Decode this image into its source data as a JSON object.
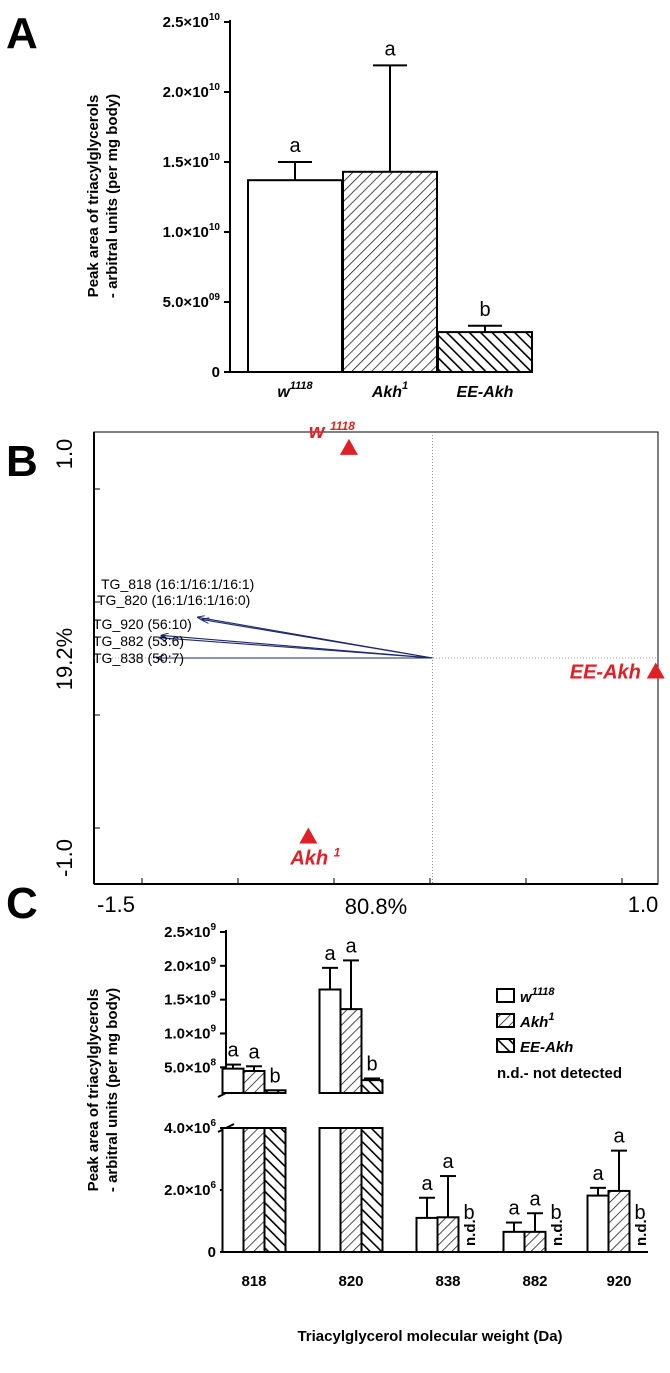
{
  "panels": {
    "a_letter": "A",
    "b_letter": "B",
    "c_letter": "C"
  },
  "colors": {
    "score_points": "#e02027",
    "loading_arrows": "#1f2a6b",
    "bars": "#000000"
  },
  "chart_data": [
    {
      "panel": "A",
      "type": "bar",
      "categories": [
        "w1118",
        "Akh1",
        "EE-Akh"
      ],
      "category_labels": [
        {
          "base": "w",
          "sup": "1118"
        },
        {
          "base": "Akh",
          "sup": "1"
        },
        {
          "base": "EE-Akh",
          "sup": ""
        }
      ],
      "values": [
        13700000000.0,
        14300000000.0,
        2850000000.0
      ],
      "errors": [
        1300000000.0,
        7600000000.0,
        450000000.0
      ],
      "fills": [
        "open",
        "hatch-forward",
        "hatch-backward-dense"
      ],
      "significance": [
        "a",
        "a",
        "b"
      ],
      "ylabel_lines": [
        "Peak area of triacylglycerols",
        "- arbitral units (per mg body)"
      ],
      "ylim": [
        0,
        25000000000.0
      ],
      "yticks": [
        {
          "value": 0,
          "mant": "0",
          "exp": ""
        },
        {
          "value": 5000000000.0,
          "mant": "5.0×10",
          "exp": "09"
        },
        {
          "value": 10000000000.0,
          "mant": "1.0×10",
          "exp": "10"
        },
        {
          "value": 15000000000.0,
          "mant": "1.5×10",
          "exp": "10"
        },
        {
          "value": 20000000000.0,
          "mant": "2.0×10",
          "exp": "10"
        },
        {
          "value": 25000000000.0,
          "mant": "2.5×10",
          "exp": "10"
        }
      ]
    },
    {
      "panel": "B",
      "type": "scatter",
      "xlabel": "80.8%",
      "ylabel": "19.2%",
      "xlim": [
        -1.5,
        1.0
      ],
      "ylim": [
        -1.0,
        1.0
      ],
      "xtick_labels": [
        "-1.5",
        "1.0"
      ],
      "ytick_labels": [
        "-1.0",
        "1.0"
      ],
      "scores": [
        {
          "name": "w1118",
          "base": "w ",
          "sup": "1118",
          "x": -0.37,
          "y": 0.93
        },
        {
          "name": "EE-Akh",
          "base": "EE-Akh",
          "sup": "",
          "x": 0.99,
          "y": -0.06
        },
        {
          "name": "Akh1",
          "base": "Akh ",
          "sup": "1",
          "x": -0.55,
          "y": -0.79
        }
      ],
      "loadings": [
        {
          "label": "TG_818 (16:1/16:1/16:1)",
          "x": -1.04,
          "y": 0.18
        },
        {
          "label": "TG_820 (16:1/16:1/16:0)",
          "x": -1.02,
          "y": 0.17
        },
        {
          "label": "TG_920 (56:10)",
          "x": -1.2,
          "y": 0.1
        },
        {
          "label": "TG_882 (53:6)",
          "x": -1.21,
          "y": 0.09
        },
        {
          "label": "TG_838 (50:7)",
          "x": -1.22,
          "y": 0.0
        }
      ]
    },
    {
      "panel": "C",
      "type": "bar",
      "xlabel": "Triacylglycerol molecular weight (Da)",
      "ylabel_lines": [
        "Peak area of triacylglycerols",
        "- arbitral units (per mg body)"
      ],
      "categories": [
        "818",
        "820",
        "838",
        "882",
        "920"
      ],
      "series": [
        {
          "name": "w1118",
          "legend_base": "w",
          "legend_sup": "1118",
          "fill": "open",
          "values": [
            480000000.0,
            1650000000.0,
            1100000.0,
            650000.0,
            1820000.0
          ],
          "errors": [
            60000000.0,
            320000000.0,
            650000.0,
            300000.0,
            250000.0
          ],
          "significance": [
            "a",
            "a",
            "a",
            "a",
            "a"
          ]
        },
        {
          "name": "Akh1",
          "legend_base": "Akh",
          "legend_sup": "1",
          "fill": "hatch-forward",
          "values": [
            445000000.0,
            1360000000.0,
            1120000.0,
            650000.0,
            1970000.0
          ],
          "errors": [
            70000000.0,
            720000000.0,
            1330000.0,
            600000.0,
            1300000.0
          ],
          "significance": [
            "a",
            "a",
            "a",
            "a",
            "a"
          ]
        },
        {
          "name": "EE-Akh",
          "legend_base": "EE-Akh",
          "legend_sup": "",
          "fill": "hatch-backward-dense",
          "values": [
            160000000.0,
            310000000.0,
            null,
            null,
            null
          ],
          "errors": [
            0,
            25000000.0,
            null,
            null,
            null
          ],
          "significance": [
            "b",
            "b",
            "b",
            "b",
            "b"
          ]
        }
      ],
      "not_detected_mark": "n.d.",
      "legend_note": "n.d.- not detected",
      "broken_axis": {
        "lower_max": 4000000.0,
        "upper_min": 120000000.0,
        "upper_max": 2500000000.0
      },
      "yticks_lower": [
        {
          "value": 0,
          "mant": "0",
          "exp": ""
        },
        {
          "value": 2000000.0,
          "mant": "2.0×10",
          "exp": "6"
        },
        {
          "value": 4000000.0,
          "mant": "4.0×10",
          "exp": "6"
        }
      ],
      "yticks_upper": [
        {
          "value": 500000000.0,
          "mant": "5.0×10",
          "exp": "8"
        },
        {
          "value": 1000000000.0,
          "mant": "1.0×10",
          "exp": "9"
        },
        {
          "value": 1500000000.0,
          "mant": "1.5×10",
          "exp": "9"
        },
        {
          "value": 2000000000.0,
          "mant": "2.0×10",
          "exp": "9"
        },
        {
          "value": 2500000000.0,
          "mant": "2.5×10",
          "exp": "9"
        }
      ]
    }
  ]
}
